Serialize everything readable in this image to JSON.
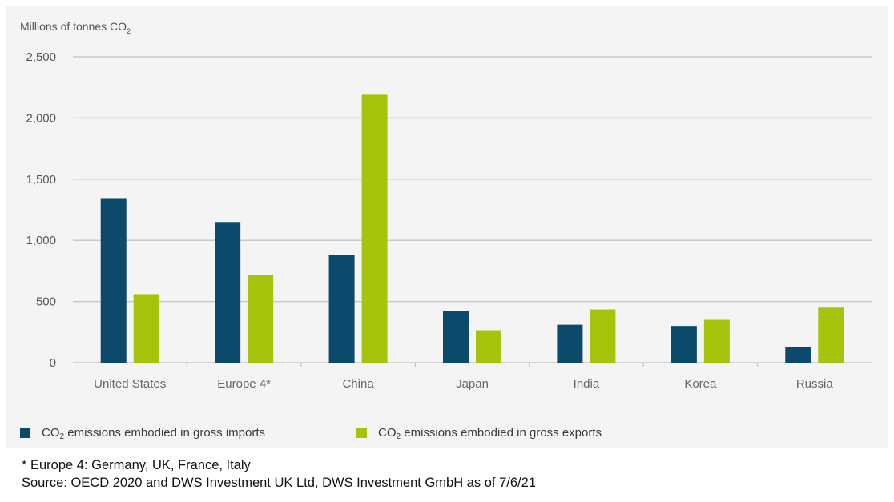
{
  "chart_data": {
    "type": "bar",
    "ylabel_main": "Millions of tonnes CO",
    "ylabel_sub": "2",
    "categories": [
      "United States",
      "Europe 4*",
      "China",
      "Japan",
      "India",
      "Korea",
      "Russia"
    ],
    "series": [
      {
        "name_main": "CO",
        "name_sub": "2",
        "name_rest": " emissions embodied in gross imports",
        "values": [
          1345,
          1150,
          880,
          425,
          310,
          300,
          130
        ],
        "color": "#0b4a6a"
      },
      {
        "name_main": "CO",
        "name_sub": "2",
        "name_rest": " emissions embodied in gross exports",
        "values": [
          560,
          715,
          2190,
          265,
          435,
          350,
          450
        ],
        "color": "#a6c40c"
      }
    ],
    "ylim": [
      0,
      2500
    ],
    "yticks": [
      0,
      500,
      1000,
      1500,
      2000,
      2500
    ],
    "ytick_labels": [
      "0",
      "500",
      "1,000",
      "1,500",
      "2,000",
      "2,500"
    ],
    "grid": true,
    "legend_position": "bottom"
  },
  "footnotes": {
    "note": "* Europe 4: Germany, UK, France, Italy",
    "source": "Source: OECD 2020 and DWS Investment UK Ltd, DWS Investment GmbH as of 7/6/21"
  }
}
